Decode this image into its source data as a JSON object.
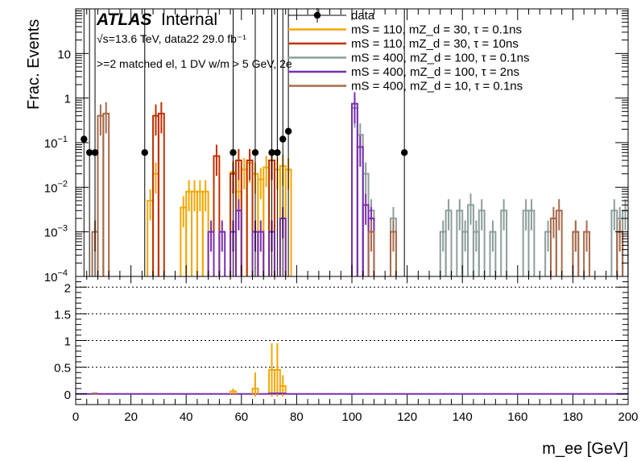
{
  "chart_data": [
    {
      "type": "histogram",
      "panel": "upper",
      "title": "",
      "atlas_label": "ATLAS",
      "atlas_status": "Internal",
      "energy_text": "√s=13.6 TeV, data22 29.0 fb⁻¹",
      "selection_text": ">=2 matched el, 1 DV w/m > 5 GeV, 2e",
      "ylabel": "Frac. Events",
      "xlabel": "m_ee [GeV]",
      "xlim": [
        0,
        200
      ],
      "ylim": [
        0.0001,
        100
      ],
      "yscale": "log",
      "bin_width": 2,
      "x_ticks": [
        "0",
        "20",
        "40",
        "60",
        "80",
        "100",
        "120",
        "140",
        "160",
        "180",
        "200"
      ],
      "y_ticks": [
        {
          "v": 0.001,
          "base": "10",
          "exp": "−3"
        },
        {
          "v": 0.01,
          "base": "10",
          "exp": "−2"
        },
        {
          "v": 0.1,
          "base": "10",
          "exp": "−1"
        },
        {
          "v": 1,
          "base": "1",
          "exp": ""
        },
        {
          "v": 10,
          "base": "10",
          "exp": ""
        },
        {
          "v": 0.0001,
          "base": "10",
          "exp": "−4"
        }
      ],
      "legend": {
        "position": "top-right"
      },
      "series": [
        {
          "name": "data",
          "label": "data",
          "kind": "points",
          "color": "#000000",
          "x": [
            3,
            5,
            7,
            25,
            57,
            65,
            71,
            73,
            75,
            77,
            119
          ],
          "y": [
            0.12,
            0.06,
            0.06,
            0.06,
            0.06,
            0.06,
            0.06,
            0.06,
            0.12,
            0.18,
            0.06
          ]
        },
        {
          "name": "mS110_mZd30_tau0.1ns",
          "label": "mS = 110, mZ_d = 30, τ = 0.1ns",
          "kind": "hist",
          "color": "#f5a700",
          "bins": [
            [
              26,
              0.005
            ],
            [
              28,
              0.02
            ],
            [
              38,
              0.0035
            ],
            [
              40,
              0.008
            ],
            [
              42,
              0.008
            ],
            [
              44,
              0.008
            ],
            [
              46,
              0.008
            ],
            [
              56,
              0.022
            ],
            [
              58,
              0.008
            ],
            [
              60,
              0.025
            ],
            [
              62,
              0.035
            ],
            [
              64,
              0.02
            ],
            [
              66,
              0.015
            ],
            [
              68,
              0.028
            ],
            [
              70,
              0.04
            ],
            [
              72,
              0.025
            ],
            [
              74,
              0.03
            ],
            [
              76,
              0.025
            ]
          ]
        },
        {
          "name": "mS110_mZd30_tau10ns",
          "label": "mS = 110, mZ_d = 30, τ = 10ns",
          "kind": "hist",
          "color": "#c03000",
          "bins": [
            [
              28,
              0.4
            ],
            [
              30,
              0.45
            ],
            [
              50,
              0.05
            ],
            [
              56,
              0.02
            ],
            [
              58,
              0.04
            ],
            [
              62,
              0.04
            ],
            [
              70,
              0.04
            ]
          ]
        },
        {
          "name": "mS400_mZd100_tau0.1ns",
          "label": "mS = 400, mZ_d = 100, τ = 0.1ns",
          "kind": "hist",
          "color": "#8c9e9c",
          "bins": [
            [
              100,
              0.6
            ],
            [
              102,
              0.15
            ],
            [
              104,
              0.02
            ],
            [
              106,
              0.003
            ],
            [
              114,
              0.002
            ],
            [
              132,
              0.001
            ],
            [
              134,
              0.003
            ],
            [
              138,
              0.003
            ],
            [
              140,
              0.001
            ],
            [
              142,
              0.004
            ],
            [
              144,
              0.001
            ],
            [
              146,
              0.003
            ],
            [
              150,
              0.001
            ],
            [
              154,
              0.003
            ],
            [
              162,
              0.003
            ],
            [
              164,
              0.003
            ],
            [
              170,
              0.001
            ],
            [
              180,
              0.001
            ],
            [
              194,
              0.003
            ],
            [
              196,
              0.002
            ],
            [
              198,
              0.003
            ]
          ]
        },
        {
          "name": "mS400_mZd100_tau2ns",
          "label": "mS = 400, mZ_d = 100, τ = 2ns",
          "kind": "hist",
          "color": "#7b2fb0",
          "bins": [
            [
              48,
              0.001
            ],
            [
              52,
              0.001
            ],
            [
              56,
              0.001
            ],
            [
              58,
              0.003
            ],
            [
              64,
              0.001
            ],
            [
              66,
              0.001
            ],
            [
              70,
              0.001
            ],
            [
              74,
              0.002
            ],
            [
              100,
              0.75
            ],
            [
              102,
              0.08
            ],
            [
              104,
              0.004
            ],
            [
              106,
              0.002
            ]
          ]
        },
        {
          "name": "mS400_mZd10_tau0.1ns",
          "label": "mS = 400, mZ_d = 10, τ = 0.1ns",
          "kind": "hist",
          "color": "#a86a4a",
          "bins": [
            [
              6,
              0.001
            ],
            [
              8,
              0.4
            ],
            [
              10,
              0.45
            ],
            [
              106,
              0.001
            ],
            [
              114,
              0.001
            ],
            [
              172,
              0.002
            ],
            [
              174,
              0.003
            ],
            [
              180,
              0.001
            ],
            [
              184,
              0.001
            ],
            [
              196,
              0.001
            ]
          ]
        }
      ]
    },
    {
      "type": "histogram",
      "panel": "lower",
      "title": "",
      "ylabel": "",
      "xlabel": "m_ee [GeV]",
      "xlim": [
        0,
        200
      ],
      "ylim": [
        -0.2,
        2.2
      ],
      "y_ticks": [
        "0",
        "0.5",
        "1",
        "1.5",
        "2"
      ],
      "x_ticks": [
        "0",
        "20",
        "40",
        "60",
        "80",
        "100",
        "120",
        "140",
        "160",
        "180",
        "200"
      ],
      "gridlines_at": [
        0.5,
        1,
        1.5,
        2
      ],
      "series": [
        {
          "name": "ratio_orange",
          "color": "#f5a700",
          "bins": [
            [
              56,
              0.05
            ],
            [
              64,
              0.1
            ],
            [
              70,
              0.45
            ],
            [
              72,
              0.45
            ],
            [
              74,
              0.15
            ]
          ],
          "errors": [
            0.05,
            0.3,
            0.5,
            0.5,
            0.2
          ]
        },
        {
          "name": "ratio_purple",
          "color": "#7b2fb0",
          "bins": [
            [
              70,
              0.01
            ],
            [
              72,
              0.01
            ],
            [
              74,
              0.01
            ]
          ],
          "errors": [
            0.01,
            0.01,
            0.01
          ]
        }
      ]
    }
  ]
}
